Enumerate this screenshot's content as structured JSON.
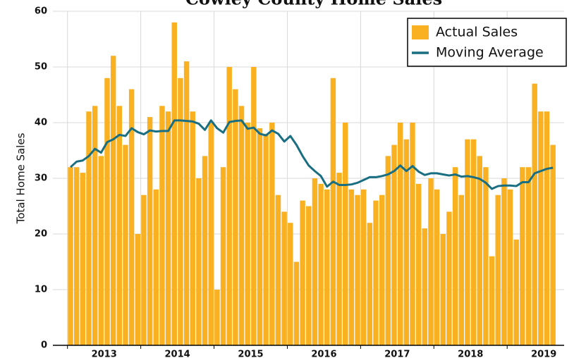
{
  "chart_data": {
    "type": "bar",
    "title": "Cowley County Home Sales",
    "y_label": "Total Home Sales",
    "categories": [
      null,
      null,
      null,
      null,
      null,
      null,
      "2013",
      null,
      null,
      null,
      null,
      null,
      null,
      null,
      null,
      null,
      null,
      null,
      "2014",
      null,
      null,
      null,
      null,
      null,
      null,
      null,
      null,
      null,
      null,
      null,
      "2015",
      null,
      null,
      null,
      null,
      null,
      null,
      null,
      null,
      null,
      null,
      null,
      "2016",
      null,
      null,
      null,
      null,
      null,
      null,
      null,
      null,
      null,
      null,
      null,
      "2017",
      null,
      null,
      null,
      null,
      null,
      null,
      null,
      null,
      null,
      null,
      null,
      "2018",
      null,
      null,
      null,
      null,
      null,
      null,
      null,
      null,
      null,
      null,
      null,
      "2019",
      null
    ],
    "series": [
      {
        "name": "Actual Sales",
        "type": "bar",
        "color": "#f9b121",
        "values": [
          32,
          32,
          31,
          42,
          43,
          34,
          48,
          52,
          43,
          36,
          46,
          20,
          27,
          41,
          28,
          43,
          42,
          58,
          48,
          51,
          42,
          30,
          34,
          40,
          10,
          32,
          50,
          46,
          43,
          40,
          50,
          39,
          38,
          40,
          27,
          24,
          22,
          15,
          26,
          25,
          30,
          29,
          28,
          48,
          31,
          40,
          28,
          27,
          28,
          22,
          26,
          27,
          34,
          36,
          40,
          37,
          40,
          29,
          21,
          30,
          28,
          20,
          24,
          32,
          27,
          37,
          37,
          34,
          32,
          16,
          27,
          30,
          28,
          19,
          32,
          32,
          47,
          42,
          42,
          36
        ]
      },
      {
        "name": "Moving Average",
        "type": "line",
        "color": "#1a6e82",
        "values": [
          32,
          33,
          33.2,
          34,
          35.3,
          34.6,
          36.5,
          37,
          37.8,
          37.6,
          39,
          38.3,
          37.9,
          38.6,
          38.4,
          38.5,
          38.5,
          40.4,
          40.4,
          40.3,
          40.2,
          39.8,
          38.7,
          40.4,
          39,
          38.2,
          40.1,
          40.3,
          40.4,
          38.9,
          39.1,
          38,
          37.7,
          38.6,
          38,
          36.6,
          37.6,
          36,
          34,
          32.3,
          31.3,
          30.4,
          28.5,
          29.4,
          28.8,
          28.8,
          28.9,
          29.2,
          29.7,
          30.2,
          30.2,
          30.4,
          30.7,
          31.3,
          32.3,
          31.3,
          32.2,
          31.2,
          30.6,
          30.9,
          30.9,
          30.7,
          30.5,
          30.7,
          30.3,
          30.4,
          30.2,
          29.9,
          29.2,
          28.1,
          28.6,
          28.7,
          28.7,
          28.6,
          29.3,
          29.3,
          30.9,
          31.3,
          31.7,
          31.9
        ]
      }
    ],
    "ylim": [
      0,
      60
    ],
    "yticks": [
      0,
      10,
      20,
      30,
      40,
      50,
      60
    ],
    "grid": true,
    "legend": "upper right"
  }
}
